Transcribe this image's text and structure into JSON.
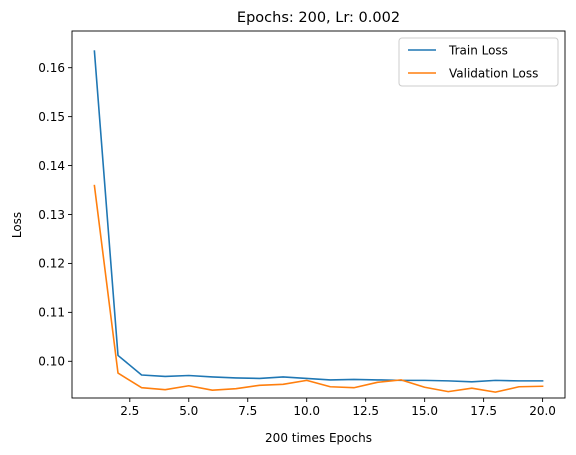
{
  "chart_data": {
    "type": "line",
    "title": "Epochs: 200, Lr: 0.002",
    "xlabel": "200 times Epochs",
    "ylabel": "Loss",
    "xlim": [
      0.05,
      20.95
    ],
    "ylim": [
      0.0925,
      0.1675
    ],
    "xticks": [
      2.5,
      5.0,
      7.5,
      10.0,
      12.5,
      15.0,
      17.5,
      20.0
    ],
    "xtick_labels": [
      "2.5",
      "5.0",
      "7.5",
      "10.0",
      "12.5",
      "15.0",
      "17.5",
      "20.0"
    ],
    "yticks": [
      0.1,
      0.11,
      0.12,
      0.13,
      0.14,
      0.15,
      0.16
    ],
    "ytick_labels": [
      "0.10",
      "0.11",
      "0.12",
      "0.13",
      "0.14",
      "0.15",
      "0.16"
    ],
    "grid": false,
    "legend_position": "top-right",
    "x": [
      1,
      2,
      3,
      4,
      5,
      6,
      7,
      8,
      9,
      10,
      11,
      12,
      13,
      14,
      15,
      16,
      17,
      18,
      19,
      20
    ],
    "series": [
      {
        "name": "Train Loss",
        "color": "#1f77b4",
        "values": [
          0.1634,
          0.1012,
          0.0972,
          0.0969,
          0.0971,
          0.0968,
          0.0966,
          0.0965,
          0.0968,
          0.0965,
          0.0962,
          0.0963,
          0.0962,
          0.0961,
          0.0961,
          0.096,
          0.0958,
          0.0961,
          0.096,
          0.096
        ]
      },
      {
        "name": "Validation Loss",
        "color": "#ff7f0e",
        "values": [
          0.1359,
          0.0976,
          0.0946,
          0.0942,
          0.095,
          0.0941,
          0.0944,
          0.0951,
          0.0953,
          0.0961,
          0.0948,
          0.0946,
          0.0957,
          0.0962,
          0.0947,
          0.0938,
          0.0945,
          0.0937,
          0.0948,
          0.0949
        ]
      }
    ]
  }
}
